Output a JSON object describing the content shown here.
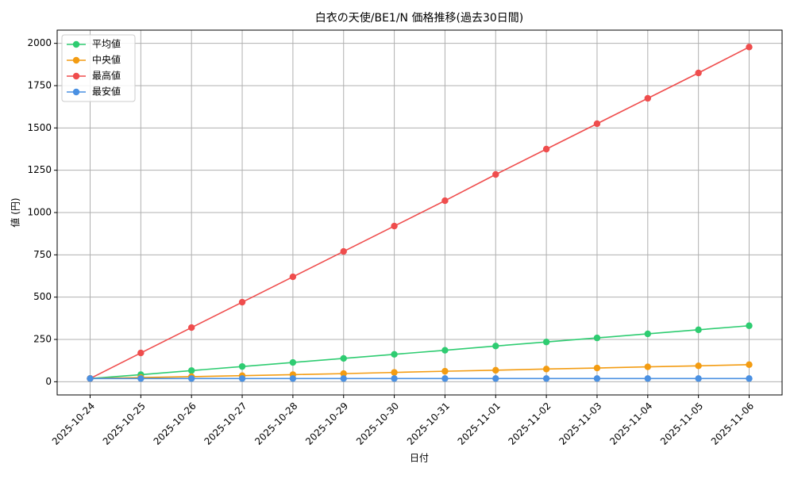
{
  "chart_data": {
    "type": "line",
    "title": "白衣の天使/BE1/N 価格推移(過去30日間)",
    "x_label": "日付",
    "y_label": "値 (円)",
    "categories": [
      "2025-10-24",
      "2025-10-25",
      "2025-10-26",
      "2025-10-27",
      "2025-10-28",
      "2025-10-29",
      "2025-10-30",
      "2025-10-31",
      "2025-11-01",
      "2025-11-02",
      "2025-11-03",
      "2025-11-04",
      "2025-11-05",
      "2025-11-06"
    ],
    "series": [
      {
        "name": "平均値",
        "color": "#2ecc71",
        "values": [
          19,
          42,
          66,
          90,
          114,
          138,
          162,
          186,
          211,
          235,
          259,
          283,
          307,
          331
        ]
      },
      {
        "name": "中央値",
        "color": "#f39c12",
        "values": [
          19,
          25,
          30,
          36,
          42,
          48,
          55,
          62,
          68,
          75,
          81,
          88,
          94,
          101
        ]
      },
      {
        "name": "最高値",
        "color": "#ef4d4d",
        "values": [
          19,
          170,
          320,
          470,
          620,
          770,
          920,
          1070,
          1225,
          1375,
          1525,
          1675,
          1825,
          1978
        ]
      },
      {
        "name": "最安値",
        "color": "#4a90e2",
        "values": [
          19,
          19,
          19,
          19,
          19,
          19,
          19,
          19,
          19,
          19,
          19,
          19,
          19,
          19
        ]
      }
    ],
    "ylim": [
      -78,
      2078
    ],
    "yticks": [
      0,
      250,
      500,
      750,
      1000,
      1250,
      1500,
      1750,
      2000
    ],
    "grid": true,
    "legend": "upper-left"
  }
}
